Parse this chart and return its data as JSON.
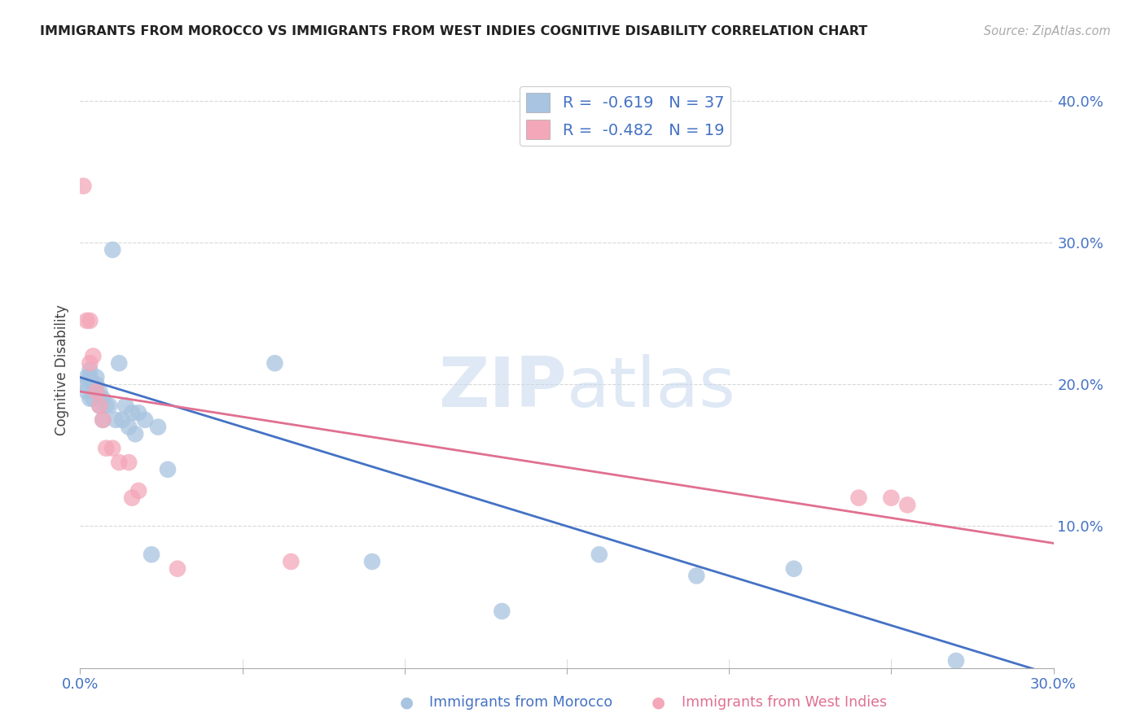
{
  "title": "IMMIGRANTS FROM MOROCCO VS IMMIGRANTS FROM WEST INDIES COGNITIVE DISABILITY CORRELATION CHART",
  "source": "Source: ZipAtlas.com",
  "xlabel_color": "#4472c4",
  "ylabel": "Cognitive Disability",
  "xlim": [
    0,
    0.3
  ],
  "ylim": [
    0,
    0.42
  ],
  "xticks": [
    0.0,
    0.05,
    0.1,
    0.15,
    0.2,
    0.25,
    0.3
  ],
  "yticks_right": [
    0.0,
    0.1,
    0.2,
    0.3,
    0.4
  ],
  "morocco_color": "#a8c4e0",
  "west_indies_color": "#f4a7b9",
  "morocco_line_color": "#4472c4",
  "west_indies_line_color": "#e07090",
  "morocco_R": -0.619,
  "morocco_N": 37,
  "west_indies_R": -0.482,
  "west_indies_N": 19,
  "morocco_x": [
    0.001,
    0.002,
    0.002,
    0.003,
    0.003,
    0.003,
    0.004,
    0.004,
    0.005,
    0.005,
    0.005,
    0.006,
    0.006,
    0.007,
    0.007,
    0.008,
    0.009,
    0.01,
    0.011,
    0.012,
    0.013,
    0.014,
    0.015,
    0.016,
    0.017,
    0.018,
    0.02,
    0.022,
    0.024,
    0.027,
    0.06,
    0.09,
    0.13,
    0.16,
    0.19,
    0.22,
    0.27
  ],
  "morocco_y": [
    0.2,
    0.205,
    0.195,
    0.21,
    0.205,
    0.19,
    0.2,
    0.19,
    0.205,
    0.2,
    0.195,
    0.195,
    0.185,
    0.19,
    0.175,
    0.185,
    0.185,
    0.295,
    0.175,
    0.215,
    0.175,
    0.185,
    0.17,
    0.18,
    0.165,
    0.18,
    0.175,
    0.08,
    0.17,
    0.14,
    0.215,
    0.075,
    0.04,
    0.08,
    0.065,
    0.07,
    0.005
  ],
  "west_indies_x": [
    0.001,
    0.002,
    0.003,
    0.003,
    0.004,
    0.005,
    0.006,
    0.007,
    0.008,
    0.01,
    0.012,
    0.015,
    0.016,
    0.018,
    0.03,
    0.065,
    0.24,
    0.25,
    0.255
  ],
  "west_indies_y": [
    0.34,
    0.245,
    0.245,
    0.215,
    0.22,
    0.195,
    0.185,
    0.175,
    0.155,
    0.155,
    0.145,
    0.145,
    0.12,
    0.125,
    0.07,
    0.075,
    0.12,
    0.12,
    0.115
  ],
  "morocco_line_x0": 0.0,
  "morocco_line_y0": 0.205,
  "morocco_line_x1": 0.3,
  "morocco_line_y1": -0.005,
  "west_indies_line_x0": 0.0,
  "west_indies_line_y0": 0.195,
  "west_indies_line_x1": 0.3,
  "west_indies_line_y1": 0.088,
  "watermark_zip": "ZIP",
  "watermark_atlas": "atlas",
  "background_color": "#ffffff",
  "grid_color": "#d8d8d8"
}
